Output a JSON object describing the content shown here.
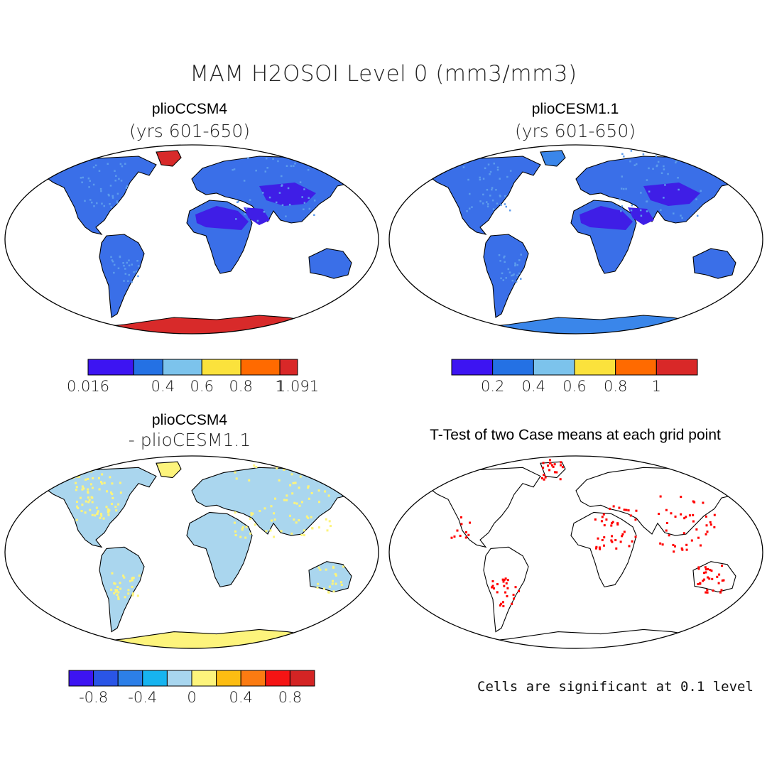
{
  "figure": {
    "title": "MAM H2OSOI Level 0 (mm3/mm3)"
  },
  "panels": [
    {
      "title": "plioCCSM4",
      "subtitle": "(yrs 601-650)",
      "land_color": "#3a6fe8",
      "desert_color": "#3f1ee6",
      "ice_color": "#d82a2a",
      "greenland_color": "#d82a2a",
      "colorbar": {
        "colors": [
          "#3d14f2",
          "#2471e4",
          "#7cc3ec",
          "#fbe23c",
          "#ff6a00",
          "#d92828"
        ],
        "labels": [
          "0.016",
          "0.4",
          "0.6",
          "0.8",
          "1",
          "1.091"
        ],
        "label_values": [
          0.016,
          0.4,
          0.6,
          0.8,
          1.0,
          1.091
        ],
        "range": [
          0.016,
          1.091
        ],
        "edges": [
          0.016,
          0.25,
          0.4,
          0.6,
          0.8,
          1.0,
          1.091
        ]
      }
    },
    {
      "title": "plioCESM1.1",
      "subtitle": "(yrs 601-650)",
      "land_color": "#3a6fe8",
      "desert_color": "#3f1ee6",
      "ice_color": "#3a86ea",
      "greenland_color": "#3a86ea",
      "colorbar": {
        "colors": [
          "#3d14f2",
          "#2471e4",
          "#7cc3ec",
          "#fbe23c",
          "#ff6a00",
          "#d92828"
        ],
        "labels": [
          "0.2",
          "0.4",
          "0.6",
          "0.8",
          "1"
        ],
        "label_values": [
          0.2,
          0.4,
          0.6,
          0.8,
          1.0
        ],
        "range": [
          0.0,
          1.2
        ],
        "edges": [
          0.0,
          0.2,
          0.4,
          0.6,
          0.8,
          1.0,
          1.2
        ]
      }
    },
    {
      "title": "plioCCSM4",
      "subtitle": "- plioCESM1.1",
      "land_color": "#aad6ee",
      "desert_color": "#fdf47c",
      "ice_color": "#fdf47c",
      "greenland_color": "#fdf47c",
      "colorbar": {
        "colors": [
          "#3d14f2",
          "#2a55e6",
          "#2c7fe8",
          "#17b4f0",
          "#a8d6ef",
          "#fdf47c",
          "#fdbd12",
          "#fb7b12",
          "#f51414",
          "#d42424"
        ],
        "labels": [
          "-0.8",
          "-0.4",
          "0",
          "0.4",
          "0.8"
        ],
        "label_values": [
          -0.8,
          -0.4,
          0.0,
          0.4,
          0.8
        ],
        "range": [
          -1.0,
          1.0
        ]
      }
    },
    {
      "title": "T-Test of two Case means at each grid point",
      "land_color": "#ffffff",
      "sig_color": "#ff0000",
      "note": "Cells are significant at 0.1 level"
    }
  ]
}
